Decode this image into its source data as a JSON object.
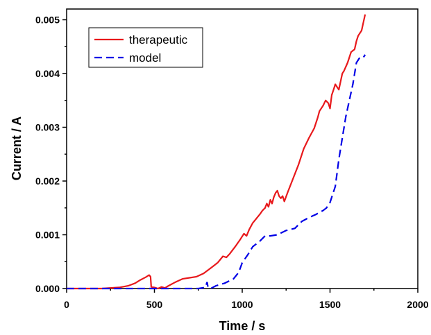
{
  "chart_data": {
    "type": "line",
    "xlabel": "Time / s",
    "ylabel": "Current / A",
    "xlim": [
      0,
      2000
    ],
    "ylim": [
      0,
      0.0052
    ],
    "x_ticks": [
      "0",
      "500",
      "1000",
      "1500",
      "2000"
    ],
    "y_ticks": [
      "0.000",
      "0.001",
      "0.002",
      "0.003",
      "0.004",
      "0.005"
    ],
    "grid": false,
    "legend": "top-left",
    "series": [
      {
        "name": "therapeutic",
        "color": "#e8191c",
        "style": "solid",
        "points": [
          [
            0,
            0
          ],
          [
            200,
            0
          ],
          [
            300,
            2e-05
          ],
          [
            350,
            5e-05
          ],
          [
            390,
            0.0001
          ],
          [
            420,
            0.00016
          ],
          [
            450,
            0.00021
          ],
          [
            470,
            0.00025
          ],
          [
            478,
            0.00022
          ],
          [
            482,
            3e-05
          ],
          [
            500,
            2e-05
          ],
          [
            520,
            0.0
          ],
          [
            540,
            3e-05
          ],
          [
            560,
            1e-05
          ],
          [
            580,
            5e-05
          ],
          [
            620,
            0.00012
          ],
          [
            660,
            0.00018
          ],
          [
            700,
            0.0002
          ],
          [
            740,
            0.00022
          ],
          [
            780,
            0.00028
          ],
          [
            820,
            0.00038
          ],
          [
            860,
            0.00048
          ],
          [
            890,
            0.0006
          ],
          [
            910,
            0.00058
          ],
          [
            930,
            0.00065
          ],
          [
            960,
            0.00078
          ],
          [
            990,
            0.00092
          ],
          [
            1010,
            0.00102
          ],
          [
            1025,
            0.00098
          ],
          [
            1040,
            0.0011
          ],
          [
            1060,
            0.00122
          ],
          [
            1080,
            0.0013
          ],
          [
            1100,
            0.00138
          ],
          [
            1115,
            0.00145
          ],
          [
            1130,
            0.0015
          ],
          [
            1140,
            0.00158
          ],
          [
            1150,
            0.00152
          ],
          [
            1160,
            0.00165
          ],
          [
            1170,
            0.00158
          ],
          [
            1180,
            0.0017
          ],
          [
            1190,
            0.00178
          ],
          [
            1200,
            0.00182
          ],
          [
            1210,
            0.00172
          ],
          [
            1220,
            0.00168
          ],
          [
            1230,
            0.00172
          ],
          [
            1240,
            0.00162
          ],
          [
            1260,
            0.0018
          ],
          [
            1290,
            0.00205
          ],
          [
            1320,
            0.0023
          ],
          [
            1350,
            0.0026
          ],
          [
            1380,
            0.0028
          ],
          [
            1410,
            0.00298
          ],
          [
            1430,
            0.00318
          ],
          [
            1440,
            0.0033
          ],
          [
            1460,
            0.0034
          ],
          [
            1475,
            0.0035
          ],
          [
            1490,
            0.00345
          ],
          [
            1500,
            0.00335
          ],
          [
            1510,
            0.0036
          ],
          [
            1520,
            0.0037
          ],
          [
            1530,
            0.0038
          ],
          [
            1540,
            0.00375
          ],
          [
            1550,
            0.0037
          ],
          [
            1560,
            0.00385
          ],
          [
            1570,
            0.004
          ],
          [
            1580,
            0.00405
          ],
          [
            1600,
            0.0042
          ],
          [
            1620,
            0.0044
          ],
          [
            1640,
            0.00445
          ],
          [
            1650,
            0.0046
          ],
          [
            1660,
            0.0047
          ],
          [
            1680,
            0.0048
          ],
          [
            1700,
            0.0051
          ]
        ]
      },
      {
        "name": "model",
        "color": "#0000e6",
        "style": "dashed",
        "points": [
          [
            0,
            0
          ],
          [
            750,
            0
          ],
          [
            790,
            2e-05
          ],
          [
            800,
            0.00012
          ],
          [
            805,
            2e-05
          ],
          [
            820,
            0.0
          ],
          [
            850,
            5e-05
          ],
          [
            900,
            0.0001
          ],
          [
            950,
            0.00018
          ],
          [
            980,
            0.0003
          ],
          [
            1000,
            0.00048
          ],
          [
            1030,
            0.00062
          ],
          [
            1060,
            0.00078
          ],
          [
            1100,
            0.00088
          ],
          [
            1130,
            0.00098
          ],
          [
            1160,
            0.00098
          ],
          [
            1200,
            0.001
          ],
          [
            1250,
            0.00108
          ],
          [
            1300,
            0.00112
          ],
          [
            1340,
            0.00125
          ],
          [
            1380,
            0.00132
          ],
          [
            1420,
            0.00138
          ],
          [
            1460,
            0.00145
          ],
          [
            1480,
            0.0015
          ],
          [
            1500,
            0.0016
          ],
          [
            1530,
            0.0019
          ],
          [
            1550,
            0.0024
          ],
          [
            1570,
            0.0028
          ],
          [
            1590,
            0.0032
          ],
          [
            1610,
            0.0035
          ],
          [
            1630,
            0.0038
          ],
          [
            1650,
            0.0042
          ],
          [
            1670,
            0.0043
          ],
          [
            1690,
            0.0043
          ],
          [
            1700,
            0.00435
          ]
        ]
      }
    ]
  }
}
